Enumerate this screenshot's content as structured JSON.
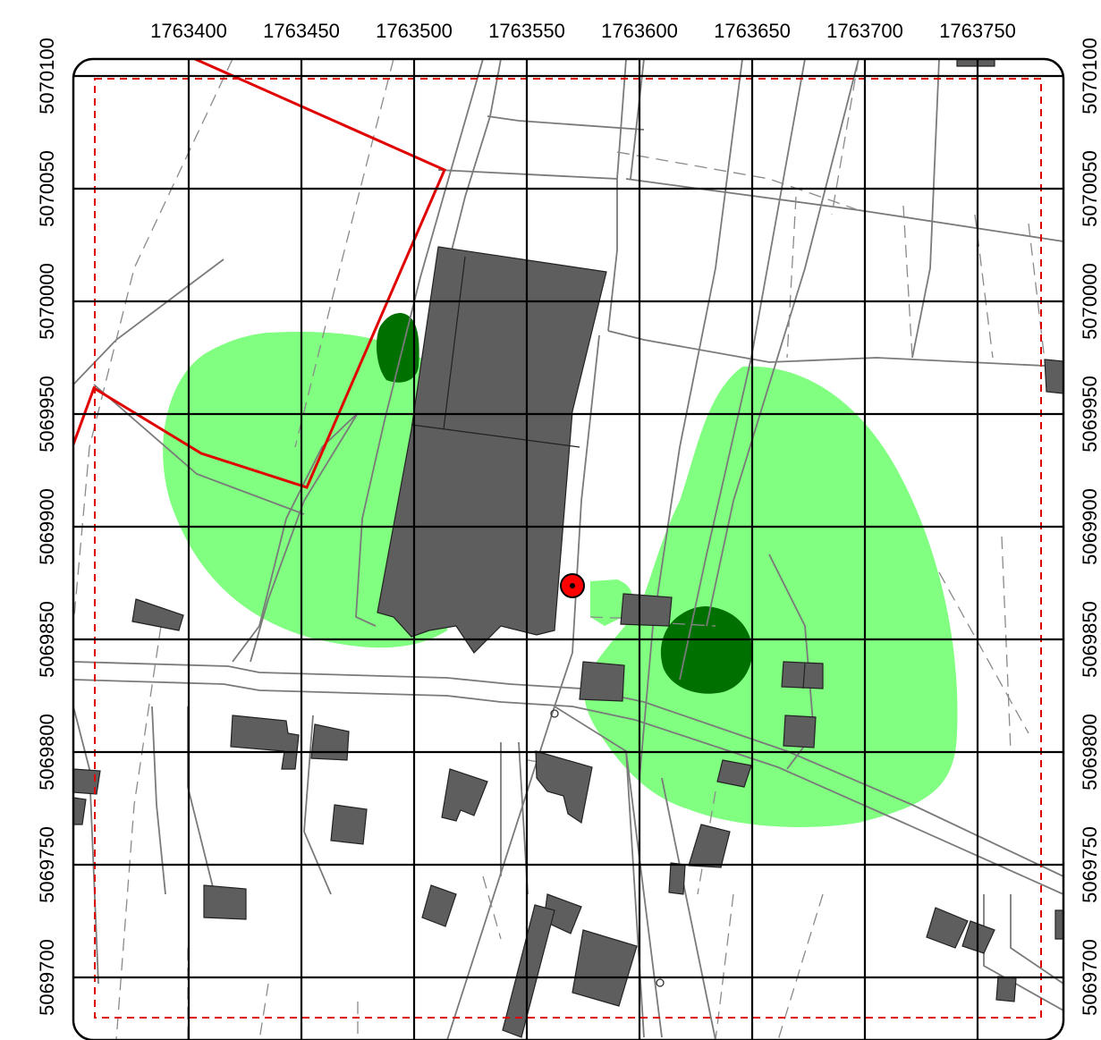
{
  "x_axis": {
    "labels": [
      "1763400",
      "1763450",
      "1763500",
      "1763550",
      "1763600",
      "1763650",
      "1763700",
      "1763750"
    ]
  },
  "y_axis": {
    "labels": [
      "5070100",
      "5070050",
      "5070000",
      "5069950",
      "5069900",
      "5069850",
      "5069800",
      "5069750",
      "5069700"
    ]
  },
  "colors": {
    "grid": "#000000",
    "building": "#5e5e5e",
    "zone_light": "#80ff80",
    "zone_dark": "#007000",
    "boundary": "#e00000",
    "roads": "#7a7a7a",
    "marker": "#ff0000"
  },
  "legend_items": {
    "marker": "red-dot-marker",
    "boundary": "red-solid-parcel-boundary",
    "extent": "red-dashed-extent"
  }
}
